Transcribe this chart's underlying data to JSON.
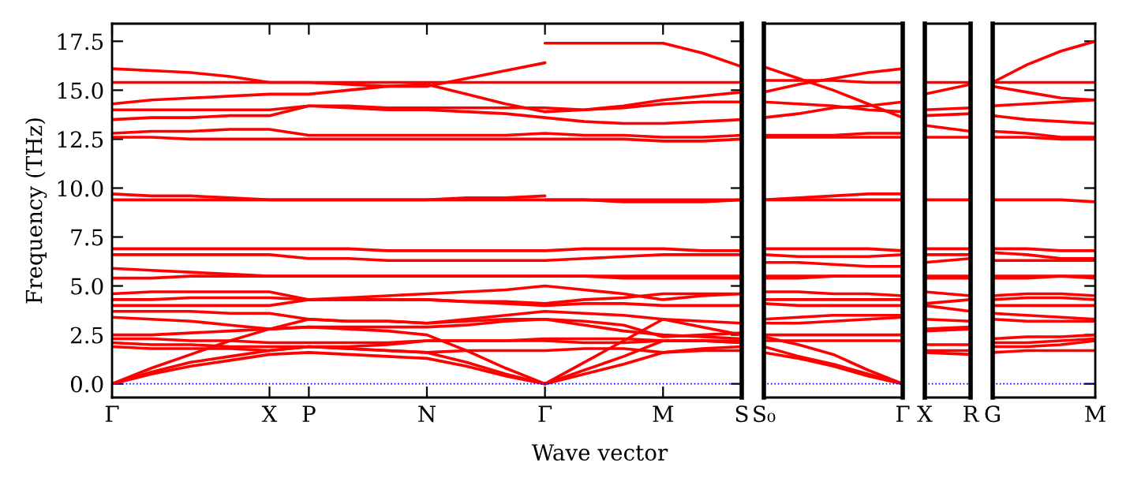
{
  "chart_data": [
    {
      "type": "line",
      "ylabel": "Frequency (THz)",
      "xlabel": "Wave vector",
      "color": "#ff0000",
      "categories": [
        "Γ",
        null,
        null,
        null,
        "X",
        "P",
        null,
        null,
        "N",
        null,
        null,
        "Γ",
        null,
        null,
        "M",
        null,
        "S"
      ],
      "ylim": [
        -0.7,
        18.4
      ],
      "yticks": [
        {
          "value": 0,
          "label": "0.0"
        },
        {
          "value": 2.5,
          "label": "2.5"
        },
        {
          "value": 5,
          "label": "5.0"
        },
        {
          "value": 7.5,
          "label": "7.5"
        },
        {
          "value": 10,
          "label": "10.0"
        },
        {
          "value": 12.5,
          "label": "12.5"
        },
        {
          "value": 15,
          "label": "15.0"
        },
        {
          "value": 17.5,
          "label": "17.5"
        }
      ],
      "ref_lines": [
        {
          "axis": "y",
          "value": 0,
          "color": "#0000ff",
          "line_style": "dotted"
        }
      ],
      "series": [
        {
          "values": [
            16.1,
            16.0,
            15.9,
            15.7,
            15.4,
            15.4,
            15.3,
            15.2,
            15.2,
            15.6,
            16.0,
            16.4,
            null,
            null,
            null,
            null,
            null
          ]
        },
        {
          "values": [
            null,
            null,
            null,
            null,
            null,
            null,
            null,
            null,
            null,
            null,
            null,
            17.4,
            17.4,
            17.4,
            17.4,
            16.9,
            16.2
          ]
        },
        {
          "values": [
            15.4,
            15.4,
            15.4,
            15.4,
            15.4,
            15.4,
            15.4,
            15.4,
            15.4,
            15.4,
            15.4,
            15.4,
            15.4,
            15.4,
            15.4,
            15.4,
            15.4
          ]
        },
        {
          "values": [
            14.3,
            14.5,
            14.6,
            14.7,
            14.8,
            14.8,
            15.0,
            15.2,
            15.3,
            14.8,
            14.3,
            13.9,
            14.0,
            14.2,
            14.5,
            14.7,
            14.9
          ]
        },
        {
          "values": [
            14.0,
            14.0,
            14.0,
            14.0,
            14.0,
            14.2,
            14.2,
            14.1,
            14.1,
            14.1,
            14.1,
            14.1,
            14.0,
            14.1,
            14.3,
            14.4,
            14.4
          ]
        },
        {
          "values": [
            13.5,
            13.6,
            13.6,
            13.7,
            13.7,
            14.2,
            14.1,
            14.0,
            14.0,
            13.9,
            13.8,
            13.6,
            13.4,
            13.3,
            13.3,
            13.4,
            13.5
          ]
        },
        {
          "values": [
            12.8,
            12.9,
            12.9,
            13.0,
            13.0,
            12.7,
            12.7,
            12.7,
            12.7,
            12.7,
            12.7,
            12.8,
            12.7,
            12.7,
            12.6,
            12.6,
            12.7
          ]
        },
        {
          "values": [
            12.6,
            12.6,
            12.5,
            12.5,
            12.5,
            12.5,
            12.5,
            12.5,
            12.5,
            12.5,
            12.5,
            12.5,
            12.5,
            12.5,
            12.4,
            12.4,
            12.5
          ]
        },
        {
          "values": [
            9.7,
            9.6,
            9.6,
            9.5,
            9.4,
            9.4,
            9.4,
            9.4,
            9.4,
            9.5,
            9.5,
            9.6,
            null,
            null,
            null,
            null,
            null
          ]
        },
        {
          "values": [
            9.4,
            9.4,
            9.4,
            9.4,
            9.4,
            9.4,
            9.4,
            9.4,
            9.4,
            9.4,
            9.4,
            9.4,
            9.4,
            9.4,
            9.4,
            9.4,
            9.4
          ]
        },
        {
          "values": [
            null,
            null,
            null,
            null,
            null,
            null,
            null,
            null,
            null,
            null,
            null,
            9.4,
            9.4,
            9.3,
            9.3,
            9.3,
            9.4
          ]
        },
        {
          "values": [
            6.9,
            6.9,
            6.9,
            6.9,
            6.9,
            6.9,
            6.9,
            6.8,
            6.8,
            6.8,
            6.8,
            6.8,
            6.9,
            6.9,
            6.9,
            6.8,
            6.8
          ]
        },
        {
          "values": [
            6.6,
            6.6,
            6.6,
            6.6,
            6.6,
            6.4,
            6.4,
            6.3,
            6.3,
            6.3,
            6.3,
            6.3,
            6.4,
            6.5,
            6.6,
            6.6,
            6.6
          ]
        },
        {
          "values": [
            5.9,
            5.8,
            5.7,
            5.6,
            5.5,
            5.5,
            5.5,
            5.5,
            5.5,
            5.5,
            5.5,
            5.5,
            5.5,
            5.5,
            5.5,
            5.5,
            5.5
          ]
        },
        {
          "values": [
            5.4,
            5.4,
            5.5,
            5.5,
            5.5,
            5.5,
            5.5,
            5.5,
            5.5,
            5.5,
            5.5,
            5.5,
            5.5,
            5.4,
            5.4,
            5.4,
            5.4
          ]
        },
        {
          "values": [
            4.6,
            4.7,
            4.7,
            4.7,
            4.7,
            4.3,
            4.4,
            4.5,
            4.6,
            4.7,
            4.8,
            5.0,
            4.8,
            4.6,
            4.3,
            4.5,
            4.6
          ]
        },
        {
          "values": [
            4.3,
            4.3,
            4.4,
            4.4,
            4.4,
            4.3,
            4.3,
            4.3,
            4.3,
            4.2,
            4.2,
            4.1,
            4.3,
            4.4,
            4.6,
            4.6,
            4.6
          ]
        },
        {
          "values": [
            4.0,
            4.0,
            4.0,
            4.0,
            4.0,
            4.3,
            4.3,
            4.3,
            4.3,
            4.2,
            4.1,
            4.0,
            4.1,
            4.1,
            4.0,
            4.0,
            4.0
          ]
        },
        {
          "values": [
            3.7,
            3.7,
            3.7,
            3.6,
            3.6,
            3.3,
            3.2,
            3.2,
            3.1,
            3.3,
            3.5,
            3.7,
            3.6,
            3.5,
            3.3,
            3.2,
            3.1
          ]
        },
        {
          "values": [
            3.4,
            3.3,
            3.2,
            3.0,
            2.8,
            3.3,
            3.2,
            3.2,
            3.1,
            3.2,
            3.3,
            3.3,
            3.2,
            3.0,
            2.4,
            2.5,
            2.6
          ]
        },
        {
          "values": [
            2.5,
            2.5,
            2.6,
            2.7,
            2.8,
            2.9,
            2.9,
            2.9,
            2.9,
            3.0,
            3.2,
            3.3,
            3.0,
            2.7,
            2.5,
            2.4,
            2.3
          ]
        },
        {
          "values": [
            2.3,
            2.3,
            2.2,
            2.2,
            2.1,
            2.1,
            2.1,
            2.1,
            2.2,
            2.2,
            2.2,
            2.3,
            2.3,
            2.3,
            2.2,
            2.2,
            2.1
          ]
        },
        {
          "values": [
            2.1,
            2.0,
            2.0,
            1.9,
            1.9,
            1.9,
            1.9,
            2.0,
            2.2,
            2.2,
            2.2,
            2.2,
            2.1,
            2.1,
            2.2,
            2.2,
            2.2
          ]
        },
        {
          "values": [
            1.9,
            1.8,
            1.8,
            1.8,
            1.7,
            1.9,
            1.8,
            1.7,
            1.6,
            1.7,
            1.7,
            1.7,
            1.8,
            1.8,
            1.6,
            1.7,
            1.7
          ]
        },
        {
          "values": [
            0,
            0.5,
            0.9,
            1.2,
            1.5,
            1.6,
            1.5,
            1.4,
            1.3,
            0.9,
            0.4,
            0,
            0.5,
            1.0,
            1.6,
            1.8,
            1.9
          ]
        },
        {
          "values": [
            0,
            0.6,
            1.1,
            1.4,
            1.7,
            1.9,
            1.8,
            1.7,
            1.6,
            1.1,
            0.5,
            0,
            0.7,
            1.4,
            2.2,
            2.2,
            2.1
          ]
        },
        {
          "values": [
            0,
            0.8,
            1.5,
            2.2,
            2.8,
            2.9,
            2.8,
            2.7,
            2.5,
            1.7,
            0.8,
            0,
            1.1,
            2.2,
            3.3,
            2.9,
            2.5
          ]
        }
      ]
    },
    {
      "type": "line",
      "color": "#ff0000",
      "tick_labels": "x",
      "categories": [
        "S₀",
        null,
        null,
        null,
        "Γ"
      ],
      "ylim": [
        -0.7,
        18.4
      ],
      "yticks": [
        0,
        2.5,
        5,
        7.5,
        10,
        12.5,
        15,
        17.5
      ],
      "ref_lines": [
        {
          "axis": "y",
          "value": 0,
          "color": "#0000ff",
          "line_style": "dotted"
        }
      ],
      "series": [
        {
          "values": [
            16.2,
            15.6,
            15.0,
            14.3,
            13.6
          ]
        },
        {
          "values": [
            15.5,
            15.5,
            15.5,
            15.4,
            15.4
          ]
        },
        {
          "values": [
            14.9,
            15.3,
            15.6,
            15.9,
            16.1
          ]
        },
        {
          "values": [
            14.4,
            14.3,
            14.2,
            14.0,
            13.9
          ]
        },
        {
          "values": [
            13.6,
            13.8,
            14.1,
            14.2,
            14.4
          ]
        },
        {
          "values": [
            12.7,
            12.7,
            12.7,
            12.8,
            12.8
          ]
        },
        {
          "values": [
            12.6,
            12.6,
            12.6,
            12.6,
            12.6
          ]
        },
        {
          "values": [
            9.4,
            9.5,
            9.6,
            9.7,
            9.7
          ]
        },
        {
          "values": [
            9.4,
            9.4,
            9.4,
            9.4,
            9.4
          ]
        },
        {
          "values": [
            6.9,
            6.9,
            6.9,
            6.9,
            6.8
          ]
        },
        {
          "values": [
            6.6,
            6.5,
            6.5,
            6.5,
            6.6
          ]
        },
        {
          "values": [
            6.2,
            6.2,
            6.1,
            6.0,
            6.0
          ]
        },
        {
          "values": [
            5.5,
            5.5,
            5.5,
            5.5,
            5.5
          ]
        },
        {
          "values": [
            5.4,
            5.4,
            5.5,
            5.5,
            5.5
          ]
        },
        {
          "values": [
            4.7,
            4.7,
            4.6,
            4.6,
            4.5
          ]
        },
        {
          "values": [
            4.3,
            4.3,
            4.3,
            4.3,
            4.3
          ]
        },
        {
          "values": [
            4.1,
            4.0,
            4.0,
            4.0,
            4.0
          ]
        },
        {
          "values": [
            3.3,
            3.4,
            3.5,
            3.5,
            3.5
          ]
        },
        {
          "values": [
            3.1,
            3.1,
            3.2,
            3.3,
            3.4
          ]
        },
        {
          "values": [
            2.5,
            2.5,
            2.5,
            2.5,
            2.5
          ]
        },
        {
          "values": [
            2.2,
            2.2,
            2.2,
            2.2,
            2.2
          ]
        },
        {
          "values": [
            1.9,
            1.4,
            1.0,
            0.5,
            0
          ]
        },
        {
          "values": [
            1.6,
            1.3,
            0.9,
            0.4,
            0
          ]
        },
        {
          "values": [
            2.4,
            2.0,
            1.5,
            0.7,
            0
          ]
        }
      ]
    },
    {
      "type": "line",
      "color": "#ff0000",
      "tick_labels": "x",
      "categories": [
        "X",
        "R"
      ],
      "ylim": [
        -0.7,
        18.4
      ],
      "yticks": [
        0,
        2.5,
        5,
        7.5,
        10,
        12.5,
        15,
        17.5
      ],
      "ref_lines": [
        {
          "axis": "y",
          "value": 0,
          "color": "#0000ff",
          "line_style": "dotted"
        }
      ],
      "series": [
        {
          "values": [
            15.4,
            15.4
          ]
        },
        {
          "values": [
            14.8,
            15.3
          ]
        },
        {
          "values": [
            14.0,
            14.1
          ]
        },
        {
          "values": [
            13.7,
            13.8
          ]
        },
        {
          "values": [
            13.2,
            12.9
          ]
        },
        {
          "values": [
            12.6,
            12.6
          ]
        },
        {
          "values": [
            9.4,
            9.4
          ]
        },
        {
          "values": [
            6.9,
            6.9
          ]
        },
        {
          "values": [
            6.6,
            6.6
          ]
        },
        {
          "values": [
            6.2,
            6.4
          ]
        },
        {
          "values": [
            5.5,
            5.5
          ]
        },
        {
          "values": [
            5.4,
            5.4
          ]
        },
        {
          "values": [
            4.7,
            4.5
          ]
        },
        {
          "values": [
            4.1,
            4.3
          ]
        },
        {
          "values": [
            4.0,
            3.7
          ]
        },
        {
          "values": [
            3.3,
            3.2
          ]
        },
        {
          "values": [
            2.8,
            2.9
          ]
        },
        {
          "values": [
            2.7,
            2.8
          ]
        },
        {
          "values": [
            2.0,
            2.0
          ]
        },
        {
          "values": [
            1.7,
            1.7
          ]
        },
        {
          "values": [
            1.6,
            1.5
          ]
        }
      ]
    },
    {
      "type": "line",
      "color": "#ff0000",
      "tick_labels": "x",
      "categories": [
        "G",
        null,
        null,
        "M"
      ],
      "ylim": [
        -0.7,
        18.4
      ],
      "yticks": [
        0,
        2.5,
        5,
        7.5,
        10,
        12.5,
        15,
        17.5
      ],
      "ref_lines": [
        {
          "axis": "y",
          "value": 0,
          "color": "#0000ff",
          "line_style": "dotted"
        }
      ],
      "series": [
        {
          "values": [
            15.4,
            16.3,
            17.0,
            17.5
          ]
        },
        {
          "values": [
            15.4,
            15.4,
            15.4,
            15.4
          ]
        },
        {
          "values": [
            15.2,
            14.9,
            14.6,
            14.5
          ]
        },
        {
          "values": [
            14.2,
            14.3,
            14.4,
            14.5
          ]
        },
        {
          "values": [
            13.7,
            13.5,
            13.4,
            13.3
          ]
        },
        {
          "values": [
            12.9,
            12.8,
            12.6,
            12.6
          ]
        },
        {
          "values": [
            12.6,
            12.6,
            12.5,
            12.5
          ]
        },
        {
          "values": [
            9.4,
            9.4,
            9.4,
            9.3
          ]
        },
        {
          "values": [
            6.9,
            6.9,
            6.8,
            6.8
          ]
        },
        {
          "values": [
            6.7,
            6.6,
            6.4,
            6.4
          ]
        },
        {
          "values": [
            6.3,
            6.3,
            6.3,
            6.3
          ]
        },
        {
          "values": [
            5.5,
            5.5,
            5.5,
            5.5
          ]
        },
        {
          "values": [
            5.4,
            5.4,
            5.5,
            5.4
          ]
        },
        {
          "values": [
            4.5,
            4.6,
            4.6,
            4.5
          ]
        },
        {
          "values": [
            4.3,
            4.4,
            4.4,
            4.3
          ]
        },
        {
          "values": [
            4.0,
            4.0,
            4.0,
            4.0
          ]
        },
        {
          "values": [
            3.6,
            3.5,
            3.4,
            3.3
          ]
        },
        {
          "values": [
            3.3,
            3.2,
            3.2,
            3.2
          ]
        },
        {
          "values": [
            2.3,
            2.4,
            2.4,
            2.5
          ]
        },
        {
          "values": [
            2.1,
            2.1,
            2.2,
            2.3
          ]
        },
        {
          "values": [
            1.9,
            1.9,
            2.0,
            2.2
          ]
        },
        {
          "values": [
            1.6,
            1.7,
            1.7,
            1.7
          ]
        }
      ]
    }
  ]
}
